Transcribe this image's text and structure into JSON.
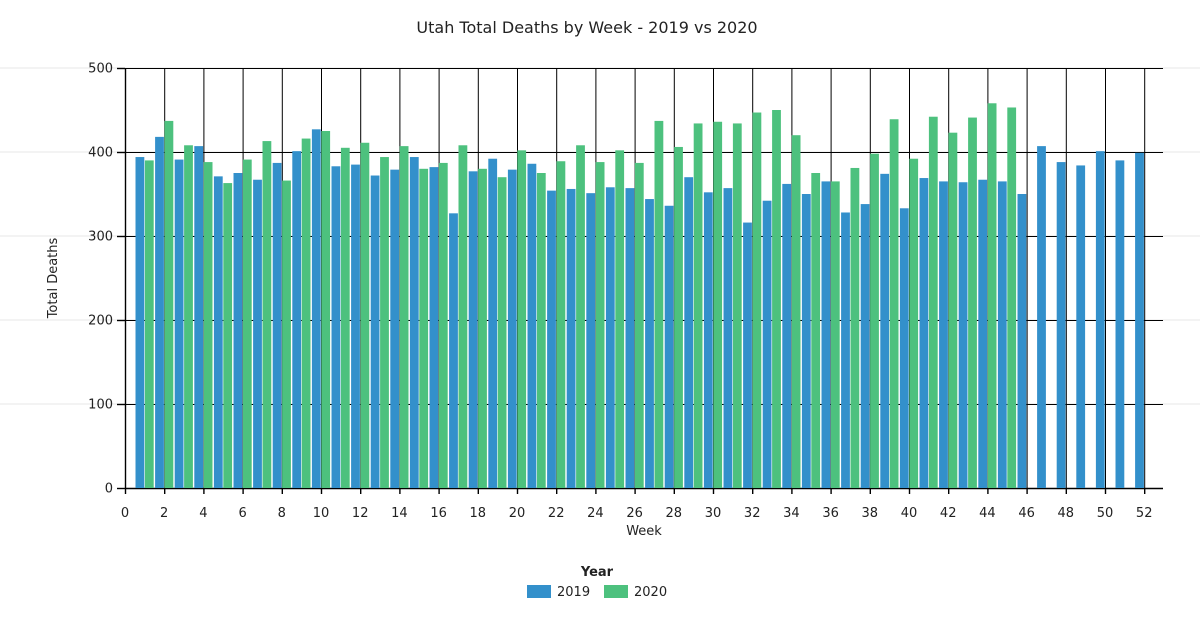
{
  "chart_data": {
    "type": "bar",
    "title": "Utah Total Deaths by Week - 2019 vs 2020",
    "xlabel": "Week",
    "ylabel": "Total Deaths",
    "legend_title": "Year",
    "legend_position": "bottom-center",
    "grid": true,
    "background_color": "#ffffff",
    "grid_color": "#000000",
    "faint_line_color": "#e7e7e7",
    "ylim": [
      0,
      500
    ],
    "y_ticks": [
      "0",
      "100",
      "200",
      "300",
      "400",
      "500"
    ],
    "x_ticks": [
      "0",
      "2",
      "4",
      "6",
      "8",
      "10",
      "12",
      "14",
      "16",
      "18",
      "20",
      "22",
      "24",
      "26",
      "28",
      "30",
      "32",
      "34",
      "36",
      "38",
      "40",
      "42",
      "44",
      "46",
      "48",
      "50",
      "52"
    ],
    "weeks": [
      1,
      2,
      3,
      4,
      5,
      6,
      7,
      8,
      9,
      10,
      11,
      12,
      13,
      14,
      15,
      16,
      17,
      18,
      19,
      20,
      21,
      22,
      23,
      24,
      25,
      26,
      27,
      28,
      29,
      30,
      31,
      32,
      33,
      34,
      35,
      36,
      37,
      38,
      39,
      40,
      41,
      42,
      43,
      44,
      45,
      46,
      47,
      48,
      49,
      50,
      51,
      52
    ],
    "series": [
      {
        "name": "2019",
        "color": "#3390cb",
        "values": [
          394,
          418,
          391,
          407,
          371,
          375,
          367,
          387,
          401,
          427,
          383,
          385,
          372,
          379,
          394,
          382,
          327,
          377,
          392,
          379,
          386,
          354,
          356,
          351,
          358,
          357,
          344,
          336,
          370,
          352,
          357,
          316,
          342,
          362,
          350,
          365,
          328,
          338,
          374,
          333,
          369,
          365,
          364,
          367,
          365,
          350,
          407,
          388,
          384,
          401,
          390,
          399
        ]
      },
      {
        "name": "2020",
        "color": "#4dc17e",
        "values": [
          390,
          437,
          408,
          388,
          363,
          391,
          413,
          366,
          416,
          425,
          405,
          411,
          394,
          407,
          380,
          387,
          408,
          380,
          370,
          402,
          375,
          389,
          408,
          388,
          402,
          387,
          437,
          406,
          434,
          436,
          434,
          447,
          450,
          420,
          375,
          365,
          381,
          398,
          439,
          392,
          442,
          423,
          441,
          458,
          453
        ]
      }
    ]
  }
}
